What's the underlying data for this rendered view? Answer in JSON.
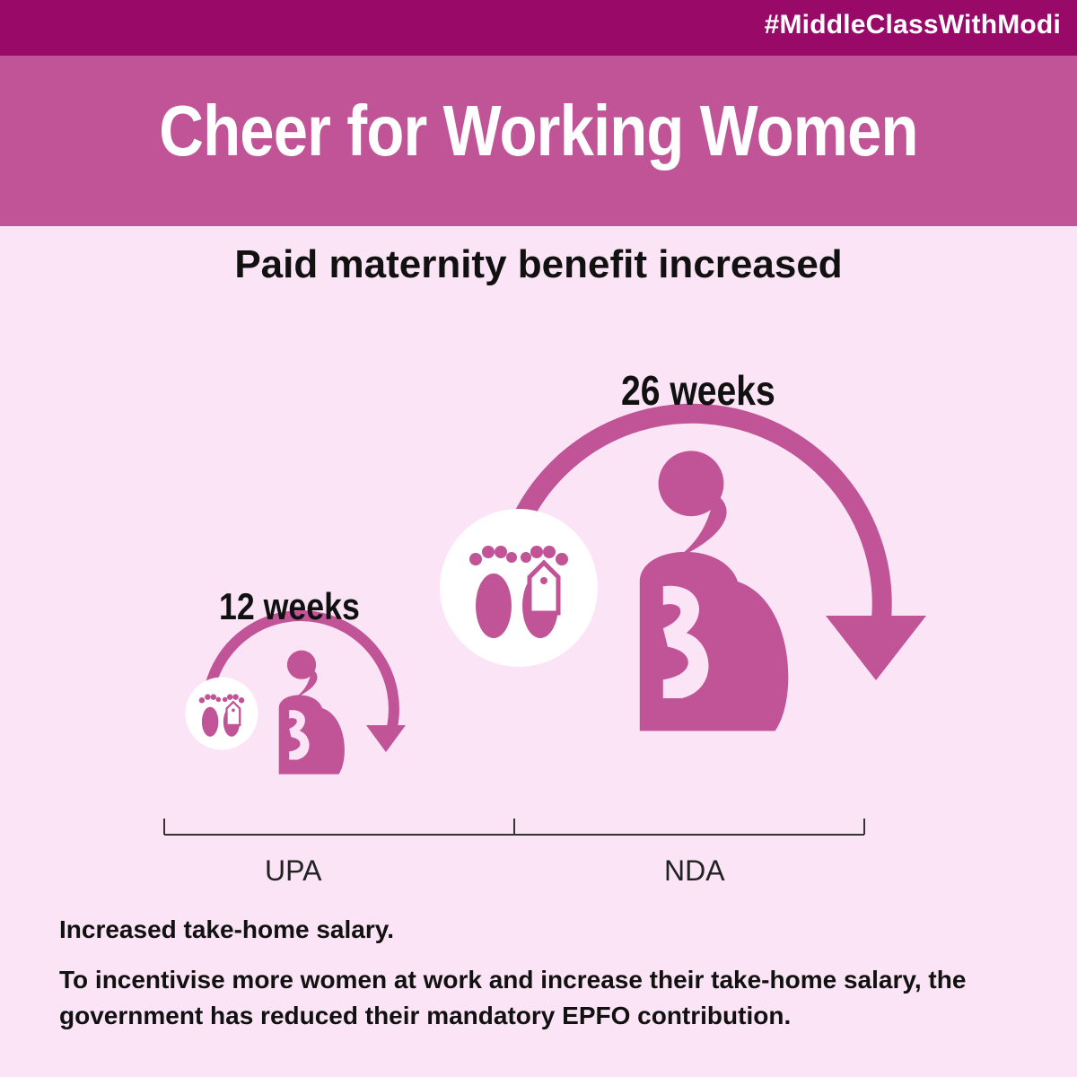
{
  "header": {
    "hashtag": "#MiddleClassWithModi",
    "title": "Cheer for Working Women"
  },
  "subtitle": "Paid maternity benefit increased",
  "comparison": [
    {
      "label": "UPA",
      "value_text": "12 weeks",
      "weeks": 12
    },
    {
      "label": "NDA",
      "value_text": "26 weeks",
      "weeks": 26
    }
  ],
  "notes": {
    "heading": "Increased take-home salary.",
    "body": "To incentivise more women at work and increase their take-home salary, the government has reduced their mandatory EPFO contribution."
  },
  "colors": {
    "top_bar": "#990a68",
    "title_bar": "#c05497",
    "background": "#fbe4f5",
    "icon": "#c05497"
  },
  "icons": [
    "pregnant-woman-icon",
    "cycle-arrow-icon",
    "baby-feet-tag-icon"
  ]
}
